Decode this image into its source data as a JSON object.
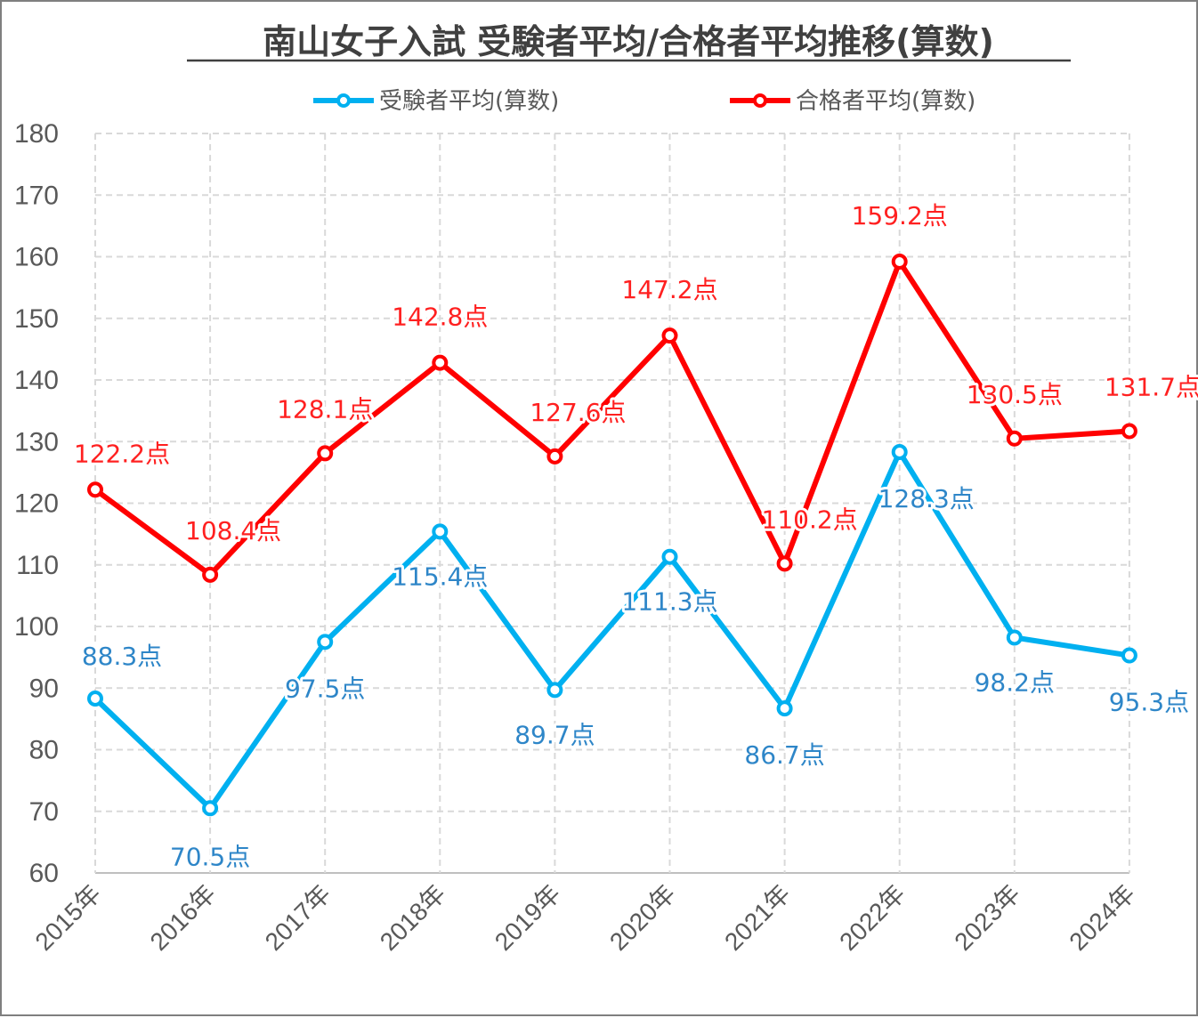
{
  "chart_data": {
    "type": "line",
    "title": "南山女子入試 受験者平均/合格者平均推移(算数)",
    "categories": [
      "2015年",
      "2016年",
      "2017年",
      "2018年",
      "2019年",
      "2020年",
      "2021年",
      "2022年",
      "2023年",
      "2024年"
    ],
    "ylim": [
      60,
      180
    ],
    "yticks": [
      "60",
      "70",
      "80",
      "90",
      "100",
      "110",
      "120",
      "130",
      "140",
      "150",
      "160",
      "170",
      "180"
    ],
    "grid": true,
    "legend_position": "top",
    "series": [
      {
        "name": "受験者平均(算数)",
        "color": "#00b0f0",
        "label_color": "#2e86c8",
        "values": [
          88.3,
          70.5,
          97.5,
          115.4,
          89.7,
          111.3,
          86.7,
          128.3,
          98.2,
          95.3
        ],
        "labels": [
          "88.3点",
          "70.5点",
          "97.5点",
          "115.4点",
          "89.7点",
          "111.3点",
          "86.7点",
          "128.3点",
          "98.2点",
          "95.3点"
        ]
      },
      {
        "name": "合格者平均(算数)",
        "color": "#ff0000",
        "label_color": "#ff2020",
        "values": [
          122.2,
          108.4,
          128.1,
          142.8,
          127.6,
          147.2,
          110.2,
          159.2,
          130.5,
          131.7
        ],
        "labels": [
          "122.2点",
          "108.4点",
          "128.1点",
          "142.8点",
          "127.6点",
          "147.2点",
          "110.2点",
          "159.2点",
          "130.5点",
          "131.7点"
        ]
      }
    ]
  }
}
